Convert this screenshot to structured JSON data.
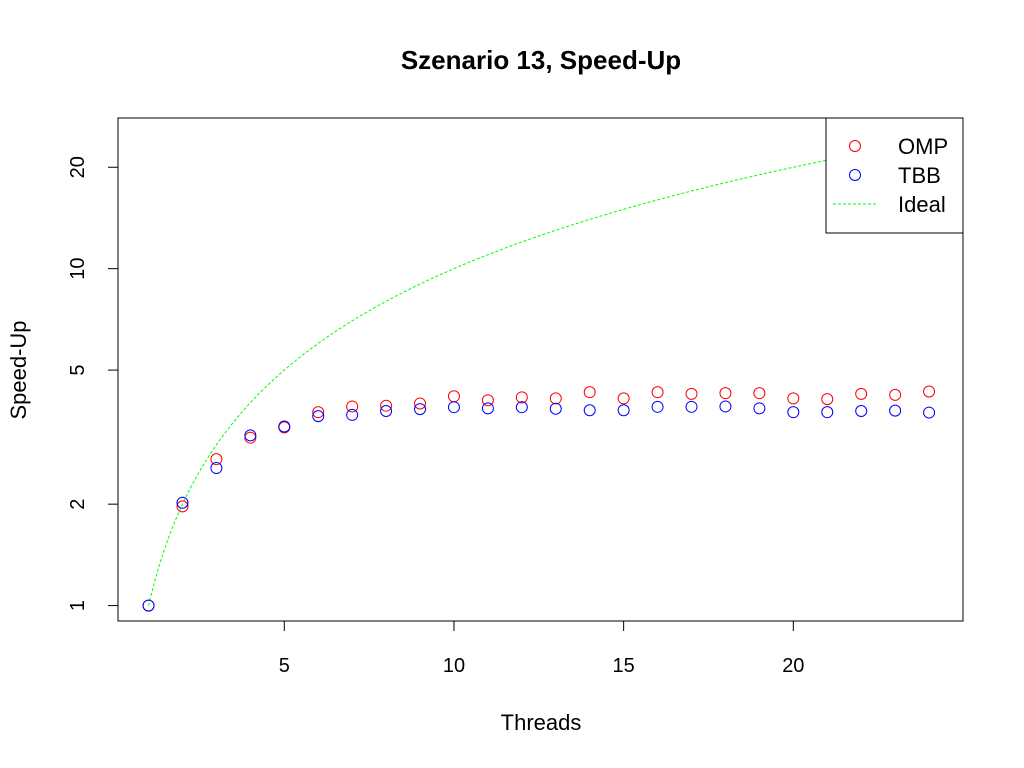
{
  "chart_data": {
    "type": "scatter",
    "title": "Szenario 13, Speed-Up",
    "xlabel": "Threads",
    "ylabel": "Speed-Up",
    "x_scale": "linear",
    "y_scale": "log",
    "xlim": [
      0.1,
      25.0
    ],
    "ylim": [
      0.9,
      28
    ],
    "x_ticks": [
      5,
      10,
      15,
      20
    ],
    "y_ticks": [
      1,
      2,
      5,
      10,
      20
    ],
    "grid": false,
    "legend_position": "top-right",
    "x": [
      1,
      2,
      3,
      4,
      5,
      6,
      7,
      8,
      9,
      10,
      11,
      12,
      13,
      14,
      15,
      16,
      17,
      18,
      19,
      20,
      21,
      22,
      23,
      24
    ],
    "series": [
      {
        "name": "OMP",
        "color": "#ff0000",
        "marker": "open-circle",
        "values": [
          1.0,
          1.97,
          2.72,
          3.15,
          3.38,
          3.75,
          3.9,
          3.92,
          3.98,
          4.18,
          4.07,
          4.15,
          4.12,
          4.3,
          4.12,
          4.3,
          4.25,
          4.27,
          4.27,
          4.12,
          4.1,
          4.25,
          4.22,
          4.32
        ]
      },
      {
        "name": "TBB",
        "color": "#0000ff",
        "marker": "open-circle",
        "values": [
          1.0,
          2.02,
          2.56,
          3.2,
          3.4,
          3.65,
          3.68,
          3.78,
          3.83,
          3.88,
          3.85,
          3.88,
          3.84,
          3.8,
          3.8,
          3.89,
          3.89,
          3.9,
          3.85,
          3.75,
          3.75,
          3.78,
          3.79,
          3.74
        ]
      },
      {
        "name": "Ideal",
        "color": "#00ff00",
        "line_style": "dashed",
        "x": [
          1,
          24
        ],
        "values": [
          1,
          24
        ]
      }
    ]
  }
}
